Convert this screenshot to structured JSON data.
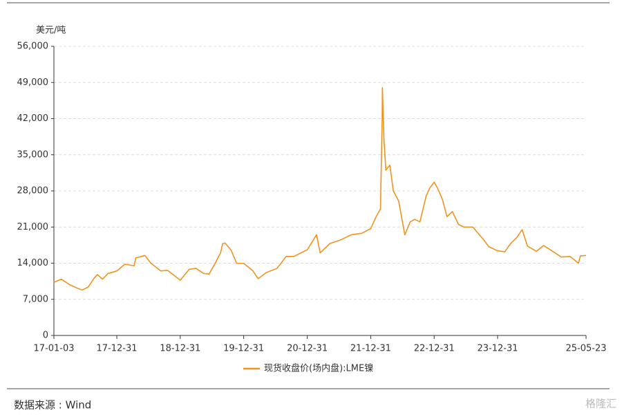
{
  "chart_data": {
    "type": "line",
    "y_axis_label": "美元/吨",
    "x": [
      "17-01-03",
      "17-02-15",
      "17-03-31",
      "17-05-15",
      "17-06-15",
      "17-07-20",
      "17-08-20",
      "17-09-10",
      "17-10-10",
      "17-11-10",
      "17-12-31",
      "18-02-15",
      "18-04-10",
      "18-04-19",
      "18-06-10",
      "18-07-15",
      "18-09-10",
      "18-10-20",
      "18-12-31",
      "19-02-20",
      "19-03-31",
      "19-05-15",
      "19-06-15",
      "19-07-20",
      "19-08-20",
      "19-09-01",
      "19-09-15",
      "19-10-20",
      "19-11-20",
      "19-12-31",
      "20-02-20",
      "20-03-23",
      "20-05-10",
      "20-07-10",
      "20-08-31",
      "20-10-15",
      "20-12-31",
      "21-02-22",
      "21-03-15",
      "21-05-10",
      "21-07-10",
      "21-09-10",
      "21-11-10",
      "21-12-31",
      "22-01-31",
      "22-02-25",
      "22-03-07",
      "22-03-08",
      "22-03-17",
      "22-03-28",
      "22-04-20",
      "22-05-10",
      "22-06-10",
      "22-07-15",
      "22-08-15",
      "22-09-10",
      "22-10-10",
      "22-11-15",
      "22-12-05",
      "22-12-31",
      "23-01-20",
      "23-02-15",
      "23-03-15",
      "23-04-15",
      "23-05-20",
      "23-06-20",
      "23-08-10",
      "23-10-10",
      "23-11-10",
      "23-12-31",
      "24-02-10",
      "24-03-15",
      "24-04-20",
      "24-05-20",
      "24-06-20",
      "24-08-10",
      "24-09-20",
      "24-10-20",
      "24-12-31",
      "25-02-20",
      "25-04-09",
      "25-04-20",
      "25-05-23"
    ],
    "series": [
      {
        "name": "现货收盘价(场内盘):LME镍",
        "color": "#f0921e",
        "values": [
          10300,
          10900,
          9900,
          9200,
          8800,
          9400,
          11000,
          11800,
          10900,
          12000,
          12500,
          13800,
          13500,
          15000,
          15500,
          14000,
          12500,
          12600,
          10700,
          12800,
          13000,
          12000,
          11900,
          14000,
          16000,
          17800,
          17900,
          16500,
          14000,
          13950,
          12600,
          11000,
          12200,
          13000,
          15300,
          15300,
          16600,
          19500,
          16000,
          17800,
          18500,
          19500,
          19800,
          20700,
          23000,
          24500,
          42000,
          48000,
          38000,
          32000,
          33000,
          28000,
          26000,
          19500,
          22000,
          22500,
          22000,
          27000,
          28500,
          29700,
          28500,
          26500,
          23000,
          24000,
          21500,
          21000,
          21000,
          18600,
          17200,
          16400,
          16200,
          17800,
          19000,
          20500,
          17300,
          16300,
          17400,
          16800,
          15200,
          15300,
          14000,
          15400,
          15500
        ]
      }
    ],
    "xlim": [
      "17-01-03",
      "25-05-23"
    ],
    "xticks": [
      "17-01-03",
      "17-12-31",
      "18-12-31",
      "19-12-31",
      "20-12-31",
      "21-12-31",
      "22-12-31",
      "23-12-31",
      "25-05-23"
    ],
    "ylim": [
      0,
      56000
    ],
    "yticks": [
      0,
      {
        "value": 7000,
        "label": "7,000"
      },
      {
        "value": 14000,
        "label": "14,000"
      },
      {
        "value": 21000,
        "label": "21,000"
      },
      {
        "value": 28000,
        "label": "28,000"
      },
      {
        "value": 35000,
        "label": "35,000"
      },
      {
        "value": 42000,
        "label": "42,000"
      },
      {
        "value": 49000,
        "label": "49,000"
      },
      {
        "value": 56000,
        "label": "56,000"
      }
    ],
    "grid": true,
    "legend": "bottom"
  },
  "footer": {
    "source": "数据来源 : Wind",
    "watermark": "格隆汇"
  }
}
